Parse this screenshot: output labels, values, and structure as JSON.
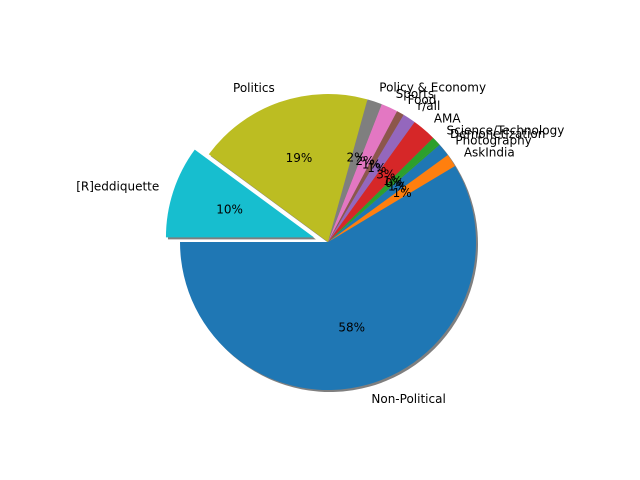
{
  "chart_data": {
    "type": "pie",
    "title": "",
    "start_angle_deg": 180,
    "direction": "counterclockwise",
    "shadow": true,
    "autopct": "%1.0f%%",
    "slices": [
      {
        "label": "Non-Political",
        "value": 58.0,
        "pct_label": "58%",
        "color": "#1f77b4",
        "explode": false
      },
      {
        "label": "AskIndia",
        "value": 1.4,
        "pct_label": "1%",
        "color": "#ff7f0e",
        "explode": false
      },
      {
        "label": "Photography",
        "value": 1.4,
        "pct_label": "1%",
        "color": "#1f77b4",
        "explode": false
      },
      {
        "label": "Demonetization",
        "value": 0.2,
        "pct_label": "0%",
        "color": "#2ca02c",
        "explode": false
      },
      {
        "label": "Science/Technology",
        "value": 0.8,
        "pct_label": "1%",
        "color": "#2ca02c",
        "explode": false
      },
      {
        "label": "AMA",
        "value": 2.6,
        "pct_label": "3%",
        "color": "#d62728",
        "explode": false
      },
      {
        "label": "r/all",
        "value": 1.4,
        "pct_label": "1%",
        "color": "#9467bd",
        "explode": false
      },
      {
        "label": "Food",
        "value": 0.8,
        "pct_label": "1%",
        "color": "#8c564b",
        "explode": false
      },
      {
        "label": "Sports",
        "value": 1.8,
        "pct_label": "2%",
        "color": "#e377c2",
        "explode": false
      },
      {
        "label": "Policy & Economy",
        "value": 1.6,
        "pct_label": "2%",
        "color": "#7f7f7f",
        "explode": false
      },
      {
        "label": "Politics",
        "value": 19.0,
        "pct_label": "19%",
        "color": "#bcbd22",
        "explode": false
      },
      {
        "label": "[R]eddiquette",
        "value": 10.0,
        "pct_label": "10%",
        "color": "#17becf",
        "explode": true
      }
    ]
  }
}
